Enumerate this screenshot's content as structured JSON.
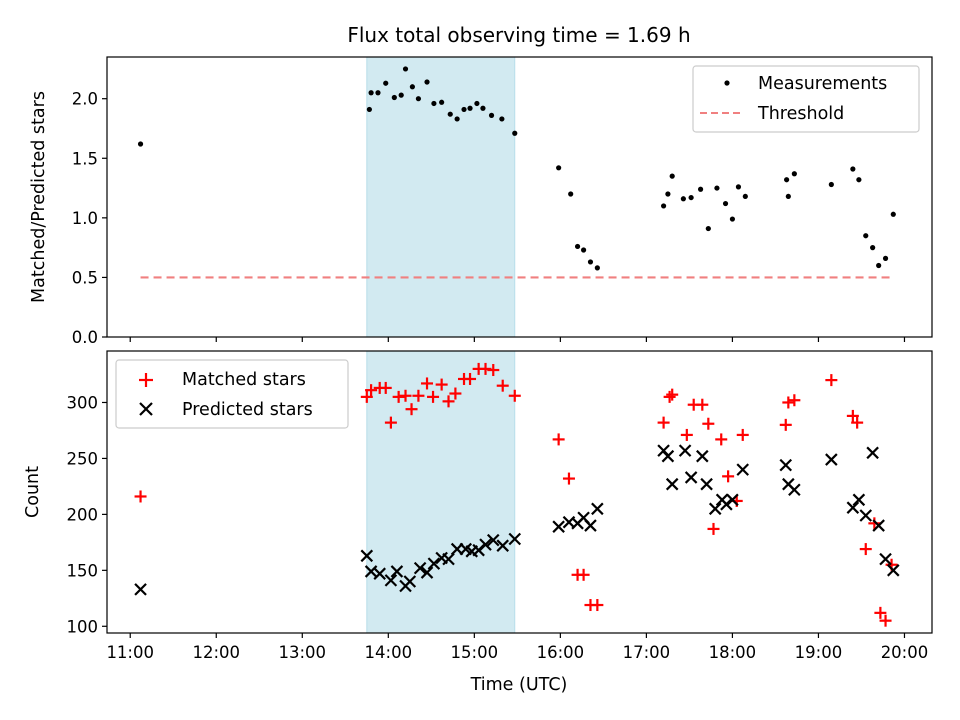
{
  "chart_data": [
    {
      "type": "scatter",
      "title": "Flux total observing time = 1.69 h",
      "xlabel": "",
      "ylabel": "Matched/Predicted stars",
      "xlim": [
        10.73,
        20.32
      ],
      "ylim": [
        0.0,
        2.35
      ],
      "yticks": [
        0.0,
        0.5,
        1.0,
        1.5,
        2.0
      ],
      "ytick_labels": [
        "0.0",
        "0.5",
        "1.0",
        "1.5",
        "2.0"
      ],
      "shaded_region": {
        "x": [
          13.75,
          15.47
        ],
        "color": "#add8e6"
      },
      "legend": {
        "position": "upper right",
        "entries": [
          "Measurements",
          "Threshold"
        ]
      },
      "series": [
        {
          "name": "Measurements",
          "marker": "dot",
          "color": "#000000",
          "x": [
            11.12,
            13.78,
            13.8,
            13.88,
            13.97,
            14.07,
            14.15,
            14.2,
            14.28,
            14.35,
            14.45,
            14.53,
            14.62,
            14.72,
            14.8,
            14.88,
            14.95,
            15.03,
            15.1,
            15.2,
            15.32,
            15.47,
            15.98,
            16.12,
            16.2,
            16.27,
            16.35,
            16.43,
            17.2,
            17.25,
            17.3,
            17.43,
            17.52,
            17.63,
            17.72,
            17.82,
            17.92,
            18.0,
            18.07,
            18.15,
            18.63,
            18.65,
            18.72,
            19.15,
            19.4,
            19.47,
            19.55,
            19.63,
            19.7,
            19.78,
            19.87
          ],
          "y": [
            1.62,
            1.91,
            2.05,
            2.05,
            2.13,
            2.01,
            2.03,
            2.25,
            2.1,
            2.0,
            2.14,
            1.96,
            1.97,
            1.87,
            1.83,
            1.91,
            1.92,
            1.96,
            1.92,
            1.86,
            1.83,
            1.71,
            1.42,
            1.2,
            0.76,
            0.73,
            0.63,
            0.58,
            1.1,
            1.2,
            1.35,
            1.16,
            1.17,
            1.24,
            0.91,
            1.25,
            1.12,
            0.99,
            1.26,
            1.18,
            1.32,
            1.18,
            1.37,
            1.28,
            1.41,
            1.32,
            0.85,
            0.75,
            0.6,
            0.66,
            1.03
          ]
        },
        {
          "name": "Threshold",
          "marker": "dashed-line",
          "color": "#f08080",
          "x": [
            11.12,
            19.87
          ],
          "y": [
            0.5,
            0.5
          ]
        }
      ]
    },
    {
      "type": "scatter",
      "title": "",
      "xlabel": "Time (UTC)",
      "ylabel": "Count",
      "xlim": [
        10.73,
        20.32
      ],
      "ylim": [
        94,
        346
      ],
      "yticks": [
        100,
        150,
        200,
        250,
        300
      ],
      "ytick_labels": [
        "100",
        "150",
        "200",
        "250",
        "300"
      ],
      "xticks": [
        11,
        12,
        13,
        14,
        15,
        16,
        17,
        18,
        19,
        20
      ],
      "xtick_labels": [
        "11:00",
        "12:00",
        "13:00",
        "14:00",
        "15:00",
        "16:00",
        "17:00",
        "18:00",
        "19:00",
        "20:00"
      ],
      "shaded_region": {
        "x": [
          13.75,
          15.47
        ],
        "color": "#add8e6"
      },
      "legend": {
        "position": "upper left",
        "entries": [
          "Matched stars",
          "Predicted stars"
        ]
      },
      "series": [
        {
          "name": "Matched stars",
          "marker": "plus",
          "color": "#ff0000",
          "x": [
            11.12,
            13.75,
            13.8,
            13.9,
            13.97,
            14.03,
            14.12,
            14.2,
            14.27,
            14.35,
            14.45,
            14.52,
            14.62,
            14.7,
            14.78,
            14.88,
            14.95,
            15.05,
            15.13,
            15.22,
            15.33,
            15.47,
            15.98,
            16.1,
            16.2,
            16.27,
            16.35,
            16.43,
            17.2,
            17.27,
            17.3,
            17.47,
            17.55,
            17.65,
            17.72,
            17.78,
            17.87,
            17.95,
            18.05,
            18.12,
            18.62,
            18.65,
            18.72,
            19.15,
            19.4,
            19.45,
            19.55,
            19.65,
            19.72,
            19.78,
            19.85
          ],
          "y": [
            216,
            305,
            311,
            313,
            313,
            282,
            305,
            306,
            294,
            306,
            317,
            305,
            316,
            301,
            308,
            321,
            321,
            330,
            330,
            329,
            315,
            306,
            267,
            232,
            146,
            146,
            119,
            119,
            282,
            305,
            307,
            271,
            298,
            298,
            281,
            187,
            267,
            234,
            212,
            271,
            280,
            300,
            302,
            320,
            288,
            282,
            169,
            192,
            112,
            105,
            155
          ]
        },
        {
          "name": "Predicted stars",
          "marker": "x",
          "color": "#000000",
          "x": [
            11.12,
            13.75,
            13.8,
            13.9,
            14.03,
            14.1,
            14.2,
            14.25,
            14.37,
            14.45,
            14.53,
            14.62,
            14.7,
            14.8,
            14.9,
            14.97,
            15.05,
            15.13,
            15.22,
            15.33,
            15.47,
            15.98,
            16.1,
            16.2,
            16.27,
            16.35,
            16.43,
            17.2,
            17.25,
            17.3,
            17.45,
            17.52,
            17.65,
            17.7,
            17.8,
            17.88,
            17.93,
            18.0,
            18.12,
            18.62,
            18.65,
            18.72,
            19.15,
            19.4,
            19.47,
            19.55,
            19.63,
            19.7,
            19.78,
            19.87
          ],
          "y": [
            133,
            163,
            149,
            147,
            141,
            149,
            136,
            140,
            152,
            148,
            156,
            161,
            160,
            169,
            169,
            167,
            168,
            173,
            177,
            172,
            178,
            189,
            193,
            192,
            197,
            190,
            205,
            257,
            252,
            227,
            257,
            233,
            252,
            227,
            205,
            213,
            209,
            213,
            240,
            244,
            227,
            222,
            249,
            206,
            213,
            199,
            255,
            190,
            160,
            150
          ]
        }
      ]
    }
  ]
}
